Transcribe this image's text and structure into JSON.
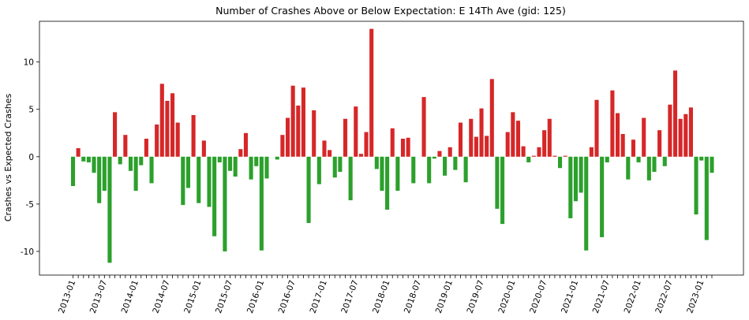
{
  "chart_data": {
    "type": "bar",
    "title": "Number of Crashes Above or Below Expectation: E 14Th Ave (gid: 125)",
    "xlabel": "",
    "ylabel": "Crashes vs Expected Crashes",
    "ylim": [
      -12.5,
      14.3
    ],
    "yticks": [
      -10,
      -5,
      0,
      5,
      10
    ],
    "colors": {
      "positive": "#d62728",
      "negative": "#2ca02c"
    },
    "start_month": "2013-01",
    "xtick_labels": [
      "2013-01",
      "2013-07",
      "2014-01",
      "2014-07",
      "2015-01",
      "2015-07",
      "2016-01",
      "2016-07",
      "2017-01",
      "2017-07",
      "2018-01",
      "2018-07",
      "2019-01",
      "2019-07",
      "2020-01",
      "2020-07",
      "2021-01",
      "2021-07",
      "2022-01",
      "2022-07",
      "2023-01"
    ],
    "values": [
      -3.1,
      0.9,
      -0.5,
      -0.6,
      -1.7,
      -4.9,
      -3.6,
      -11.2,
      4.7,
      -0.8,
      2.3,
      -1.5,
      -3.6,
      -0.9,
      1.9,
      -2.8,
      3.4,
      7.7,
      5.9,
      6.7,
      3.6,
      -5.1,
      -3.3,
      4.4,
      -4.9,
      1.7,
      -5.3,
      -8.4,
      -0.6,
      -10.0,
      -1.5,
      -2.1,
      0.8,
      2.5,
      -2.4,
      -1.0,
      -9.9,
      -2.3,
      0.0,
      -0.3,
      2.3,
      4.1,
      7.5,
      5.4,
      7.3,
      -7.0,
      4.9,
      -2.9,
      1.7,
      0.7,
      -2.2,
      -1.6,
      4.0,
      -4.6,
      5.3,
      0.3,
      2.6,
      13.5,
      -1.3,
      -3.6,
      -5.6,
      3.0,
      -3.6,
      1.9,
      2.0,
      -2.8,
      0.0,
      6.3,
      -2.8,
      -0.2,
      0.6,
      -2.0,
      1.0,
      -1.4,
      3.6,
      -2.7,
      4.0,
      2.1,
      5.1,
      2.2,
      8.2,
      -5.5,
      -7.1,
      2.6,
      4.7,
      3.8,
      1.1,
      -0.6,
      0.1,
      1.0,
      2.8,
      4.0,
      0.1,
      -1.2,
      0.1,
      -6.5,
      -4.7,
      -3.8,
      -9.9,
      1.0,
      6.0,
      -8.5,
      -0.6,
      7.0,
      4.6,
      2.4,
      -2.4,
      1.8,
      -0.6,
      4.1,
      -2.5,
      -1.6,
      2.8,
      -1.0,
      5.5,
      9.1,
      4.0,
      4.5,
      5.2,
      -6.1,
      -0.4,
      -8.8,
      -1.7
    ]
  }
}
